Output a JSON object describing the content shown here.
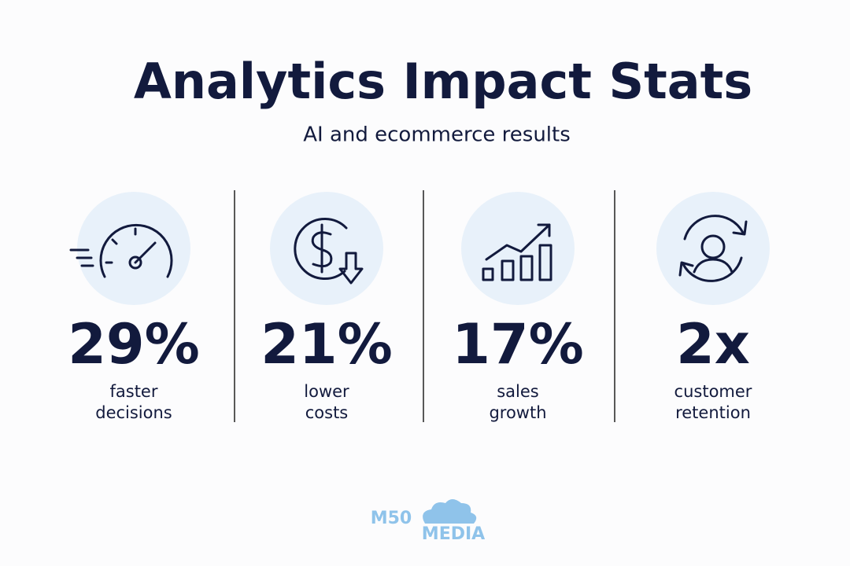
{
  "header": {
    "title": "Analytics Impact Stats",
    "subtitle": "AI and ecommerce results"
  },
  "stats": [
    {
      "value": "29%",
      "label": [
        "faster",
        "decisions"
      ]
    },
    {
      "value": "21%",
      "label": [
        "lower",
        "costs"
      ]
    },
    {
      "value": "17%",
      "label": [
        "sales",
        "growth"
      ]
    },
    {
      "value": "2x",
      "label": [
        "customer",
        "retention"
      ]
    }
  ],
  "logo": {
    "top": "M50",
    "bottom": "MEDIA"
  }
}
